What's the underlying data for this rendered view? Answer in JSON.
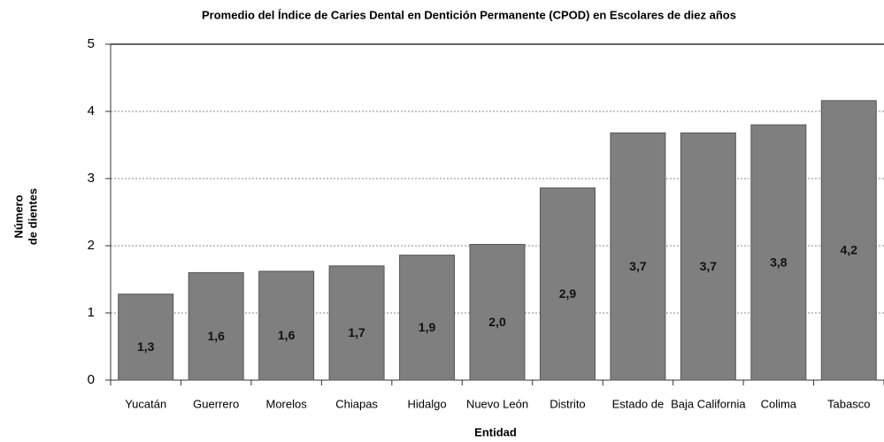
{
  "chart_data": {
    "type": "bar",
    "title": "Promedio del Índice de Caries Dental en Dentición Permanente (CPOD) en Escolares de diez años",
    "xlabel": "Entidad",
    "ylabel": [
      "Número",
      "de dientes"
    ],
    "categories": [
      "Yucatán",
      "Guerrero",
      "Morelos",
      "Chiapas",
      "Hidalgo",
      "Nuevo León",
      "Distrito",
      "Estado de",
      "Baja California",
      "Colima",
      "Tabasco"
    ],
    "values": [
      1.28,
      1.6,
      1.62,
      1.7,
      1.86,
      2.02,
      2.86,
      3.68,
      3.68,
      3.8,
      4.16
    ],
    "value_labels": [
      "1,3",
      "1,6",
      "1,6",
      "1,7",
      "1,9",
      "2,0",
      "2,9",
      "3,7",
      "3,7",
      "3,8",
      "4,2"
    ],
    "color": "#7f7f7f",
    "ylim": [
      0,
      5
    ],
    "yticks": [
      0,
      1,
      2,
      3,
      4,
      5
    ],
    "grid": true
  }
}
